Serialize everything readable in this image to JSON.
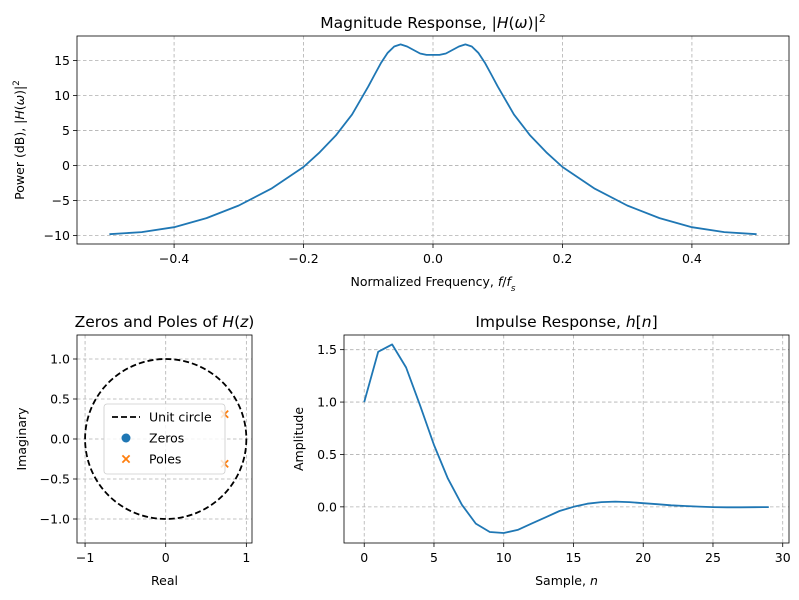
{
  "chart_data": [
    {
      "id": "magnitude",
      "type": "line",
      "title": "Magnitude Response, |H(ω)|²",
      "title_parts": [
        {
          "t": "Magnitude Response, |"
        },
        {
          "t": "H",
          "italic": true
        },
        {
          "t": "("
        },
        {
          "t": "ω",
          "italic": true
        },
        {
          "t": ")|"
        },
        {
          "t": "2",
          "sup": true
        }
      ],
      "xlabel": "Normalized Frequency, f/f_s",
      "xlabel_parts": [
        {
          "t": "Normalized Frequency, "
        },
        {
          "t": "f",
          "italic": true
        },
        {
          "t": "/"
        },
        {
          "t": "f",
          "italic": true
        },
        {
          "t": "s",
          "italic": true,
          "sub": true
        }
      ],
      "ylabel": "Power (dB), |H(ω)|²",
      "ylabel_parts": [
        {
          "t": "Power (dB), |"
        },
        {
          "t": "H",
          "italic": true
        },
        {
          "t": "("
        },
        {
          "t": "ω",
          "italic": true
        },
        {
          "t": ")|"
        },
        {
          "t": "2",
          "sup": true
        }
      ],
      "xlim": [
        -0.55,
        0.55
      ],
      "ylim": [
        -11.2,
        18.5
      ],
      "xticks": [
        -0.4,
        -0.2,
        0.0,
        0.2,
        0.4
      ],
      "xtick_labels": [
        "−0.4",
        "−0.2",
        "0.0",
        "0.2",
        "0.4"
      ],
      "yticks": [
        -10,
        -5,
        0,
        5,
        10,
        15
      ],
      "ytick_labels": [
        "−10",
        "−5",
        "0",
        "5",
        "10",
        "15"
      ],
      "grid": true,
      "color": "#1f77b4",
      "series": [
        {
          "x": [
            -0.5,
            -0.45,
            -0.4,
            -0.35,
            -0.3,
            -0.25,
            -0.2,
            -0.175,
            -0.15,
            -0.125,
            -0.1,
            -0.09,
            -0.08,
            -0.07,
            -0.06,
            -0.05,
            -0.04,
            -0.03,
            -0.02,
            -0.01,
            0.0,
            0.01,
            0.02,
            0.03,
            0.04,
            0.05,
            0.06,
            0.07,
            0.08,
            0.09,
            0.1,
            0.125,
            0.15,
            0.175,
            0.2,
            0.25,
            0.3,
            0.35,
            0.4,
            0.45,
            0.5
          ],
          "y": [
            -9.8,
            -9.5,
            -8.8,
            -7.5,
            -5.7,
            -3.3,
            -0.2,
            1.9,
            4.3,
            7.3,
            11.3,
            13.0,
            14.7,
            16.1,
            17.0,
            17.3,
            17.0,
            16.5,
            16.0,
            15.8,
            15.8,
            15.8,
            16.0,
            16.5,
            17.0,
            17.3,
            17.0,
            16.1,
            14.7,
            13.0,
            11.3,
            7.3,
            4.3,
            1.9,
            -0.2,
            -3.3,
            -5.7,
            -7.5,
            -8.8,
            -9.5,
            -9.8
          ]
        }
      ]
    },
    {
      "id": "pole-zero",
      "type": "scatter",
      "title": "Zeros and Poles of H(z)",
      "title_parts": [
        {
          "t": "Zeros and Poles of "
        },
        {
          "t": "H",
          "italic": true
        },
        {
          "t": "("
        },
        {
          "t": "z",
          "italic": true
        },
        {
          "t": ")"
        }
      ],
      "xlabel": "Real",
      "ylabel": "Imaginary",
      "xlim": [
        -1.1,
        1.07
      ],
      "ylim": [
        -1.3,
        1.3
      ],
      "xticks": [
        -1,
        0,
        1
      ],
      "xtick_labels": [
        "−1",
        "0",
        "1"
      ],
      "yticks": [
        -1.0,
        -0.5,
        0.0,
        0.5,
        1.0
      ],
      "ytick_labels": [
        "−1.0",
        "−0.5",
        "0.0",
        "0.5",
        "1.0"
      ],
      "grid": true,
      "unit_circle": {
        "label": "Unit circle",
        "radius": 1,
        "color": "#000000",
        "style": "dashed"
      },
      "zeros": {
        "label": "Zeros",
        "color": "#1f77b4",
        "marker": "circle",
        "points": []
      },
      "poles": {
        "label": "Poles",
        "color": "#ff7f0e",
        "marker": "x",
        "points": [
          {
            "re": 0.73,
            "im": 0.31
          },
          {
            "re": 0.73,
            "im": -0.31
          }
        ]
      },
      "legend": {
        "position": "center-right",
        "entries": [
          "Unit circle",
          "Zeros",
          "Poles"
        ]
      }
    },
    {
      "id": "impulse",
      "type": "line",
      "title": "Impulse Response, h[n]",
      "title_parts": [
        {
          "t": "Impulse Response, "
        },
        {
          "t": "h",
          "italic": true
        },
        {
          "t": "["
        },
        {
          "t": "n",
          "italic": true
        },
        {
          "t": "]"
        }
      ],
      "xlabel": "Sample, n",
      "xlabel_parts": [
        {
          "t": "Sample, "
        },
        {
          "t": "n",
          "italic": true
        }
      ],
      "ylabel": "Amplitude",
      "xlim": [
        -1.45,
        30.45
      ],
      "ylim": [
        -0.345,
        1.64
      ],
      "xticks": [
        0,
        5,
        10,
        15,
        20,
        25,
        30
      ],
      "xtick_labels": [
        "0",
        "5",
        "10",
        "15",
        "20",
        "25",
        "30"
      ],
      "yticks": [
        0.0,
        0.5,
        1.0,
        1.5
      ],
      "ytick_labels": [
        "0.0",
        "0.5",
        "1.0",
        "1.5"
      ],
      "grid": true,
      "color": "#1f77b4",
      "series": [
        {
          "x": [
            0,
            1,
            2,
            3,
            4,
            5,
            6,
            7,
            8,
            9,
            10,
            11,
            12,
            13,
            14,
            15,
            16,
            17,
            18,
            19,
            20,
            21,
            22,
            23,
            24,
            25,
            26,
            27,
            28,
            29
          ],
          "y": [
            1.0,
            1.48,
            1.55,
            1.33,
            0.97,
            0.59,
            0.27,
            0.02,
            -0.16,
            -0.24,
            -0.25,
            -0.22,
            -0.16,
            -0.1,
            -0.04,
            0.0,
            0.03,
            0.045,
            0.05,
            0.045,
            0.035,
            0.025,
            0.015,
            0.008,
            0.002,
            -0.002,
            -0.004,
            -0.004,
            -0.003,
            -0.002
          ]
        }
      ]
    }
  ]
}
